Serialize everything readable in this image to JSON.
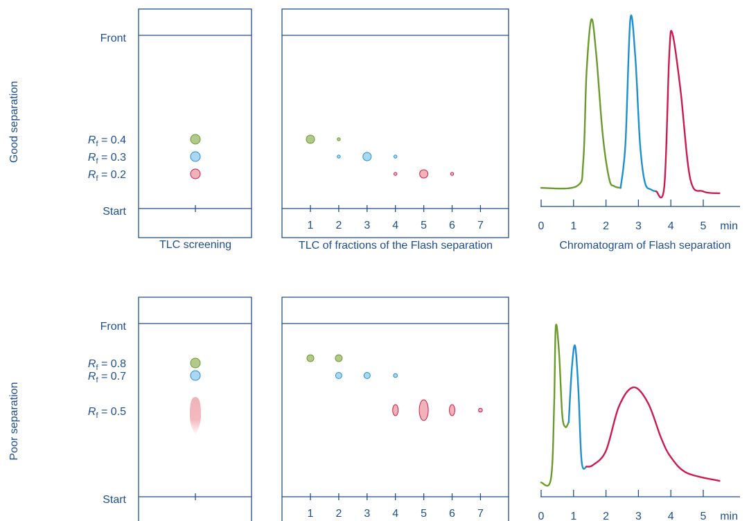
{
  "colors": {
    "frame": "#1e4e8c",
    "green": "#6a9a2c",
    "green_fill": "#b3c98c",
    "blue": "#1d8fd0",
    "blue_fill": "#a9d8f3",
    "red": "#cc1a50",
    "red_fill": "#f1b2b8"
  },
  "rows": [
    {
      "side_label": "Good separation",
      "front_label": "Front",
      "start_label": "Start",
      "rf_prefix": "R",
      "rf_sub": "f",
      "screening_spots": [
        {
          "color": "green",
          "rf": "0.4"
        },
        {
          "color": "blue",
          "rf": "0.3"
        },
        {
          "color": "red",
          "rf": "0.2"
        }
      ],
      "fraction_ticks": [
        "1",
        "2",
        "3",
        "4",
        "5",
        "6",
        "7"
      ],
      "fraction_spots": [
        {
          "fraction": 1,
          "color": "green",
          "rf": 0.4,
          "size": "large"
        },
        {
          "fraction": 2,
          "color": "green",
          "rf": 0.4,
          "size": "small"
        },
        {
          "fraction": 2,
          "color": "blue",
          "rf": 0.3,
          "size": "small"
        },
        {
          "fraction": 3,
          "color": "blue",
          "rf": 0.3,
          "size": "large"
        },
        {
          "fraction": 4,
          "color": "blue",
          "rf": 0.3,
          "size": "small"
        },
        {
          "fraction": 4,
          "color": "red",
          "rf": 0.2,
          "size": "small"
        },
        {
          "fraction": 5,
          "color": "red",
          "rf": 0.2,
          "size": "large"
        },
        {
          "fraction": 6,
          "color": "red",
          "rf": 0.2,
          "size": "small"
        }
      ]
    },
    {
      "side_label": "Poor separation",
      "front_label": "Front",
      "start_label": "Start",
      "rf_prefix": "R",
      "rf_sub": "f",
      "screening_spots": [
        {
          "color": "green",
          "rf": "0.8"
        },
        {
          "color": "blue",
          "rf": "0.7"
        },
        {
          "color": "red",
          "rf": "0.5"
        }
      ],
      "fraction_ticks": [
        "1",
        "2",
        "3",
        "4",
        "5",
        "6",
        "7"
      ],
      "fraction_spots": [
        {
          "fraction": 1,
          "color": "green",
          "rf": 0.8,
          "size": "medium"
        },
        {
          "fraction": 2,
          "color": "green",
          "rf": 0.8,
          "size": "medium"
        },
        {
          "fraction": 2,
          "color": "blue",
          "rf": 0.7,
          "size": "medium"
        },
        {
          "fraction": 3,
          "color": "blue",
          "rf": 0.7,
          "size": "medium"
        },
        {
          "fraction": 4,
          "color": "blue",
          "rf": 0.7,
          "size": "small"
        },
        {
          "fraction": 4,
          "color": "red",
          "rf": 0.5,
          "size": "medium"
        },
        {
          "fraction": 5,
          "color": "red",
          "rf": 0.5,
          "size": "large"
        },
        {
          "fraction": 6,
          "color": "red",
          "rf": 0.5,
          "size": "medium"
        },
        {
          "fraction": 7,
          "color": "red",
          "rf": 0.5,
          "size": "small"
        }
      ]
    }
  ],
  "captions": {
    "tlc_screening": "TLC screening",
    "tlc_fractions": "TLC of fractions of the Flash separation",
    "chromatogram": "Chromatogram of Flash separation"
  },
  "chart_data": [
    {
      "type": "line",
      "title": "",
      "xlabel": "",
      "x_ticks": [
        "0",
        "1",
        "2",
        "3",
        "4",
        "5"
      ],
      "x_unit": "min",
      "xlim": [
        0,
        6
      ],
      "series": [
        {
          "color": "green",
          "x": [
            0,
            1.1,
            1.3,
            1.4,
            1.55,
            1.7,
            1.9,
            2.1,
            2.25,
            2.45
          ],
          "y": [
            0.05,
            0.06,
            0.2,
            0.7,
            1.0,
            0.8,
            0.35,
            0.1,
            0.06,
            0.05
          ]
        },
        {
          "color": "blue",
          "x": [
            2.45,
            2.6,
            2.75,
            2.9,
            3.05,
            3.2,
            3.4,
            3.55
          ],
          "y": [
            0.05,
            0.3,
            1.0,
            0.8,
            0.3,
            0.08,
            0.04,
            0.03
          ]
        },
        {
          "color": "red",
          "x": [
            3.55,
            3.8,
            3.95,
            4.05,
            4.3,
            4.6,
            5.0,
            5.5
          ],
          "y": [
            0.03,
            0.06,
            0.8,
            0.92,
            0.6,
            0.1,
            0.03,
            0.02
          ]
        }
      ]
    },
    {
      "type": "line",
      "title": "",
      "xlabel": "",
      "x_ticks": [
        "0",
        "1",
        "2",
        "3",
        "4",
        "5"
      ],
      "x_unit": "min",
      "xlim": [
        0,
        6
      ],
      "series": [
        {
          "color": "green",
          "x": [
            0,
            0.3,
            0.4,
            0.45,
            0.55,
            0.65,
            0.75,
            0.85
          ],
          "y": [
            0.02,
            0.04,
            0.5,
            1.0,
            0.85,
            0.45,
            0.37,
            0.4
          ]
        },
        {
          "color": "blue",
          "x": [
            0.85,
            0.95,
            1.05,
            1.15,
            1.25,
            1.4
          ],
          "y": [
            0.4,
            0.75,
            0.88,
            0.6,
            0.15,
            0.12
          ]
        },
        {
          "color": "red",
          "x": [
            1.4,
            1.6,
            2.0,
            2.4,
            2.85,
            3.3,
            3.7,
            4.0,
            4.5,
            5.5
          ],
          "y": [
            0.12,
            0.13,
            0.22,
            0.5,
            0.62,
            0.52,
            0.3,
            0.18,
            0.08,
            0.03
          ]
        }
      ]
    }
  ]
}
